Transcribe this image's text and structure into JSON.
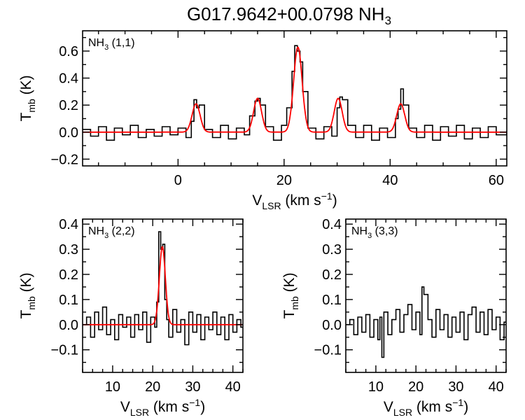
{
  "figure": {
    "title_main": "G017.9642+00.0798 NH",
    "title_sub": "3"
  },
  "chart_data": [
    {
      "type": "line",
      "panel": "NH3 (1,1)",
      "label_main": "NH",
      "label_sub": "3",
      "label_rest": " (1,1)",
      "xlabel_main": "V",
      "xlabel_sub": "LSR",
      "xlabel_rest": " (km s",
      "xlabel_sup": "−1",
      "xlabel_end": ")",
      "ylabel_main": "T",
      "ylabel_sub": "mb",
      "ylabel_rest": " (K)",
      "xlim": [
        -18,
        62
      ],
      "ylim": [
        -0.25,
        0.75
      ],
      "xticks": [
        0,
        20,
        40,
        60
      ],
      "xtick_labels": [
        "0",
        "20",
        "40",
        "60"
      ],
      "yticks": [
        -0.2,
        0.0,
        0.2,
        0.4,
        0.6
      ],
      "ytick_labels": [
        "−0.2",
        "0.0",
        "0.2",
        "0.4",
        "0.6"
      ],
      "series": [
        {
          "kind": "observed spectrum (histogram)",
          "color": "#000000",
          "x": [
            -18,
            -16.5,
            -15,
            -13.5,
            -12,
            -10.5,
            -9,
            -7.5,
            -6,
            -4.5,
            -3,
            -1.5,
            0,
            1.5,
            2.5,
            3,
            3.5,
            4,
            5,
            6.5,
            8,
            9.5,
            11,
            12.5,
            13.5,
            14.5,
            15,
            15.5,
            16.5,
            18,
            19.5,
            20.5,
            21.5,
            22,
            22.5,
            23,
            23.5,
            24.5,
            26,
            27.5,
            29,
            30,
            30.5,
            31,
            32,
            33.5,
            35,
            36.5,
            38,
            39.5,
            41,
            41.5,
            42,
            42.5,
            43.5,
            45,
            46.5,
            48,
            49.5,
            51,
            52.5,
            54,
            55.5,
            57,
            58.5,
            60,
            62
          ],
          "y": [
            0.02,
            -0.03,
            0.04,
            -0.06,
            0.03,
            -0.02,
            0.05,
            -0.04,
            0.02,
            -0.03,
            0.04,
            -0.02,
            0.03,
            -0.04,
            0.08,
            0.24,
            0.18,
            0.2,
            0.02,
            -0.04,
            0.05,
            -0.05,
            0.03,
            -0.02,
            0.12,
            0.23,
            0.25,
            0.2,
            0.04,
            -0.06,
            0.05,
            0.18,
            0.45,
            0.64,
            0.6,
            0.52,
            0.3,
            0.03,
            -0.05,
            0.04,
            -0.03,
            0.18,
            0.26,
            0.24,
            0.05,
            -0.04,
            0.05,
            -0.06,
            0.03,
            -0.04,
            0.1,
            0.17,
            0.32,
            0.2,
            0.03,
            -0.04,
            0.05,
            -0.06,
            0.04,
            -0.03,
            0.05,
            -0.05,
            0.03,
            -0.04,
            0.04,
            -0.02,
            0.01
          ]
        },
        {
          "kind": "gaussian fit",
          "color": "#ff0000",
          "components": [
            {
              "center": 3.4,
              "amplitude": 0.21,
              "sigma": 0.75
            },
            {
              "center": 15.0,
              "amplitude": 0.25,
              "sigma": 0.75
            },
            {
              "center": 22.6,
              "amplitude": 0.63,
              "sigma": 0.8
            },
            {
              "center": 30.2,
              "amplitude": 0.25,
              "sigma": 0.75
            },
            {
              "center": 42.0,
              "amplitude": 0.21,
              "sigma": 0.75
            }
          ]
        }
      ]
    },
    {
      "type": "line",
      "panel": "NH3 (2,2)",
      "label_main": "NH",
      "label_sub": "3",
      "label_rest": " (2,2)",
      "xlabel_main": "V",
      "xlabel_sub": "LSR",
      "xlabel_rest": " (km s",
      "xlabel_sup": "−1",
      "xlabel_end": ")",
      "ylabel_main": "T",
      "ylabel_sub": "mb",
      "ylabel_rest": " (K)",
      "xlim": [
        2.5,
        42.5
      ],
      "ylim": [
        -0.19,
        0.42
      ],
      "xticks": [
        10,
        20,
        30,
        40
      ],
      "xtick_labels": [
        "10",
        "20",
        "30",
        "40"
      ],
      "yticks": [
        -0.1,
        0.0,
        0.1,
        0.2,
        0.3,
        0.4
      ],
      "ytick_labels": [
        "−0.1",
        "0.0",
        "0.1",
        "0.2",
        "0.3",
        "0.4"
      ],
      "series": [
        {
          "kind": "observed spectrum (histogram)",
          "color": "#000000",
          "x": [
            2.5,
            3.5,
            4.5,
            5.5,
            6.5,
            7.5,
            8.5,
            9.5,
            10.5,
            11.5,
            12.5,
            13.5,
            14.5,
            15.5,
            16.5,
            17.5,
            18.5,
            19.5,
            20.5,
            21,
            21.5,
            22,
            22.5,
            23,
            23.5,
            24,
            25,
            26,
            27,
            28,
            29,
            30,
            31,
            32,
            33,
            34,
            35,
            36,
            37,
            38,
            39,
            40,
            41,
            42
          ],
          "y": [
            0.0,
            0.03,
            -0.05,
            0.05,
            -0.02,
            0.07,
            -0.04,
            0.02,
            -0.06,
            0.04,
            -0.01,
            0.03,
            -0.05,
            0.04,
            -0.02,
            0.05,
            -0.07,
            0.03,
            -0.01,
            0.09,
            0.37,
            0.3,
            0.32,
            0.1,
            0.02,
            -0.05,
            0.06,
            -0.03,
            0.02,
            -0.08,
            0.05,
            -0.03,
            0.04,
            -0.06,
            0.03,
            -0.02,
            0.05,
            -0.04,
            0.03,
            -0.06,
            0.04,
            -0.03,
            0.02,
            -0.01
          ]
        },
        {
          "kind": "gaussian fit",
          "color": "#ff0000",
          "components": [
            {
              "center": 22.4,
              "amplitude": 0.31,
              "sigma": 0.75
            }
          ]
        }
      ]
    },
    {
      "type": "line",
      "panel": "NH3 (3,3)",
      "label_main": "NH",
      "label_sub": "3",
      "label_rest": " (3,3)",
      "xlabel_main": "V",
      "xlabel_sub": "LSR",
      "xlabel_rest": " (km s",
      "xlabel_sup": "−1",
      "xlabel_end": ")",
      "ylabel_main": "T",
      "ylabel_sub": "mb",
      "ylabel_rest": " (K)",
      "xlim": [
        2.5,
        42.5
      ],
      "ylim": [
        -0.19,
        0.42
      ],
      "xticks": [
        10,
        20,
        30,
        40
      ],
      "xtick_labels": [
        "10",
        "20",
        "30",
        "40"
      ],
      "yticks": [
        -0.1,
        0.0,
        0.1,
        0.2,
        0.3,
        0.4
      ],
      "ytick_labels": [
        "−0.1",
        "0.0",
        "0.1",
        "0.2",
        "0.3",
        "0.4"
      ],
      "series": [
        {
          "kind": "observed spectrum (histogram)",
          "color": "#000000",
          "x": [
            2.5,
            3.5,
            4.5,
            5.5,
            6.5,
            7.5,
            8.5,
            9.5,
            10.5,
            11,
            11.5,
            12,
            13,
            14,
            15,
            16,
            17,
            18,
            19,
            20,
            21,
            21.5,
            22,
            23,
            24,
            25,
            26,
            27,
            28,
            29,
            30,
            31,
            32,
            33,
            34,
            35,
            36,
            37,
            38,
            39,
            40,
            41,
            42
          ],
          "y": [
            0.0,
            0.02,
            -0.04,
            0.03,
            -0.03,
            0.04,
            -0.05,
            0.02,
            -0.06,
            0.03,
            -0.13,
            0.05,
            -0.04,
            0.02,
            0.06,
            -0.03,
            0.04,
            0.08,
            -0.02,
            0.05,
            -0.04,
            0.15,
            0.12,
            0.02,
            -0.05,
            0.06,
            -0.02,
            0.04,
            -0.05,
            0.03,
            -0.03,
            0.05,
            -0.06,
            0.04,
            0.07,
            -0.03,
            0.05,
            -0.04,
            0.06,
            -0.02,
            0.03,
            -0.06,
            0.01
          ]
        }
      ]
    }
  ]
}
